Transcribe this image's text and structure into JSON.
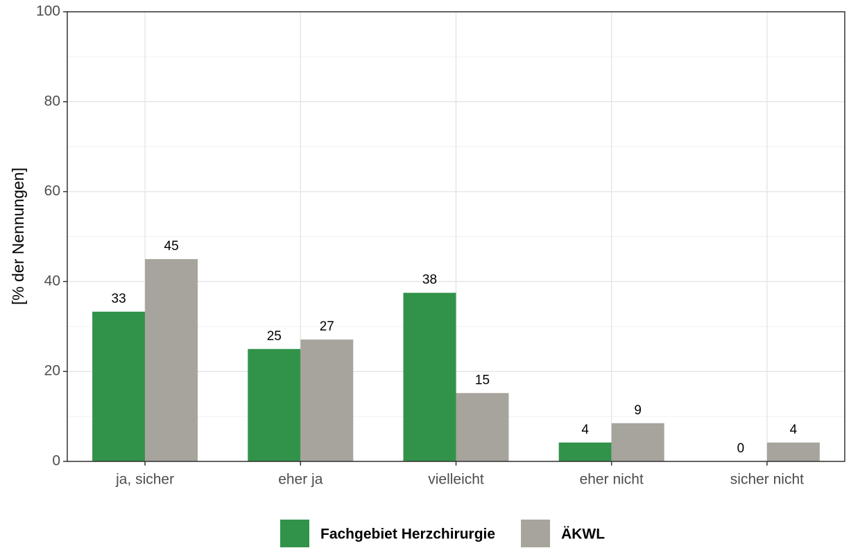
{
  "chart_data": {
    "type": "bar",
    "y_label": "[% der Nennungen]",
    "categories": [
      "ja, sicher",
      "eher ja",
      "vielleicht",
      "eher nicht",
      "sicher nicht"
    ],
    "series": [
      {
        "name": "Fachgebiet Herzchirurgie",
        "color": "#31934a",
        "values": [
          33.3,
          25,
          37.5,
          4.2,
          0
        ],
        "value_labels": [
          "33",
          "25",
          "38",
          "4",
          "0"
        ]
      },
      {
        "name": "ÄKWL",
        "color": "#a7a49d",
        "values": [
          45,
          27.1,
          15.2,
          8.5,
          4.2
        ],
        "value_labels": [
          "45",
          "27",
          "15",
          "9",
          "4"
        ]
      }
    ],
    "ylim": [
      0,
      100
    ],
    "yticks": [
      0,
      20,
      40,
      60,
      80,
      100
    ],
    "grid": true,
    "legend": "bottom"
  }
}
